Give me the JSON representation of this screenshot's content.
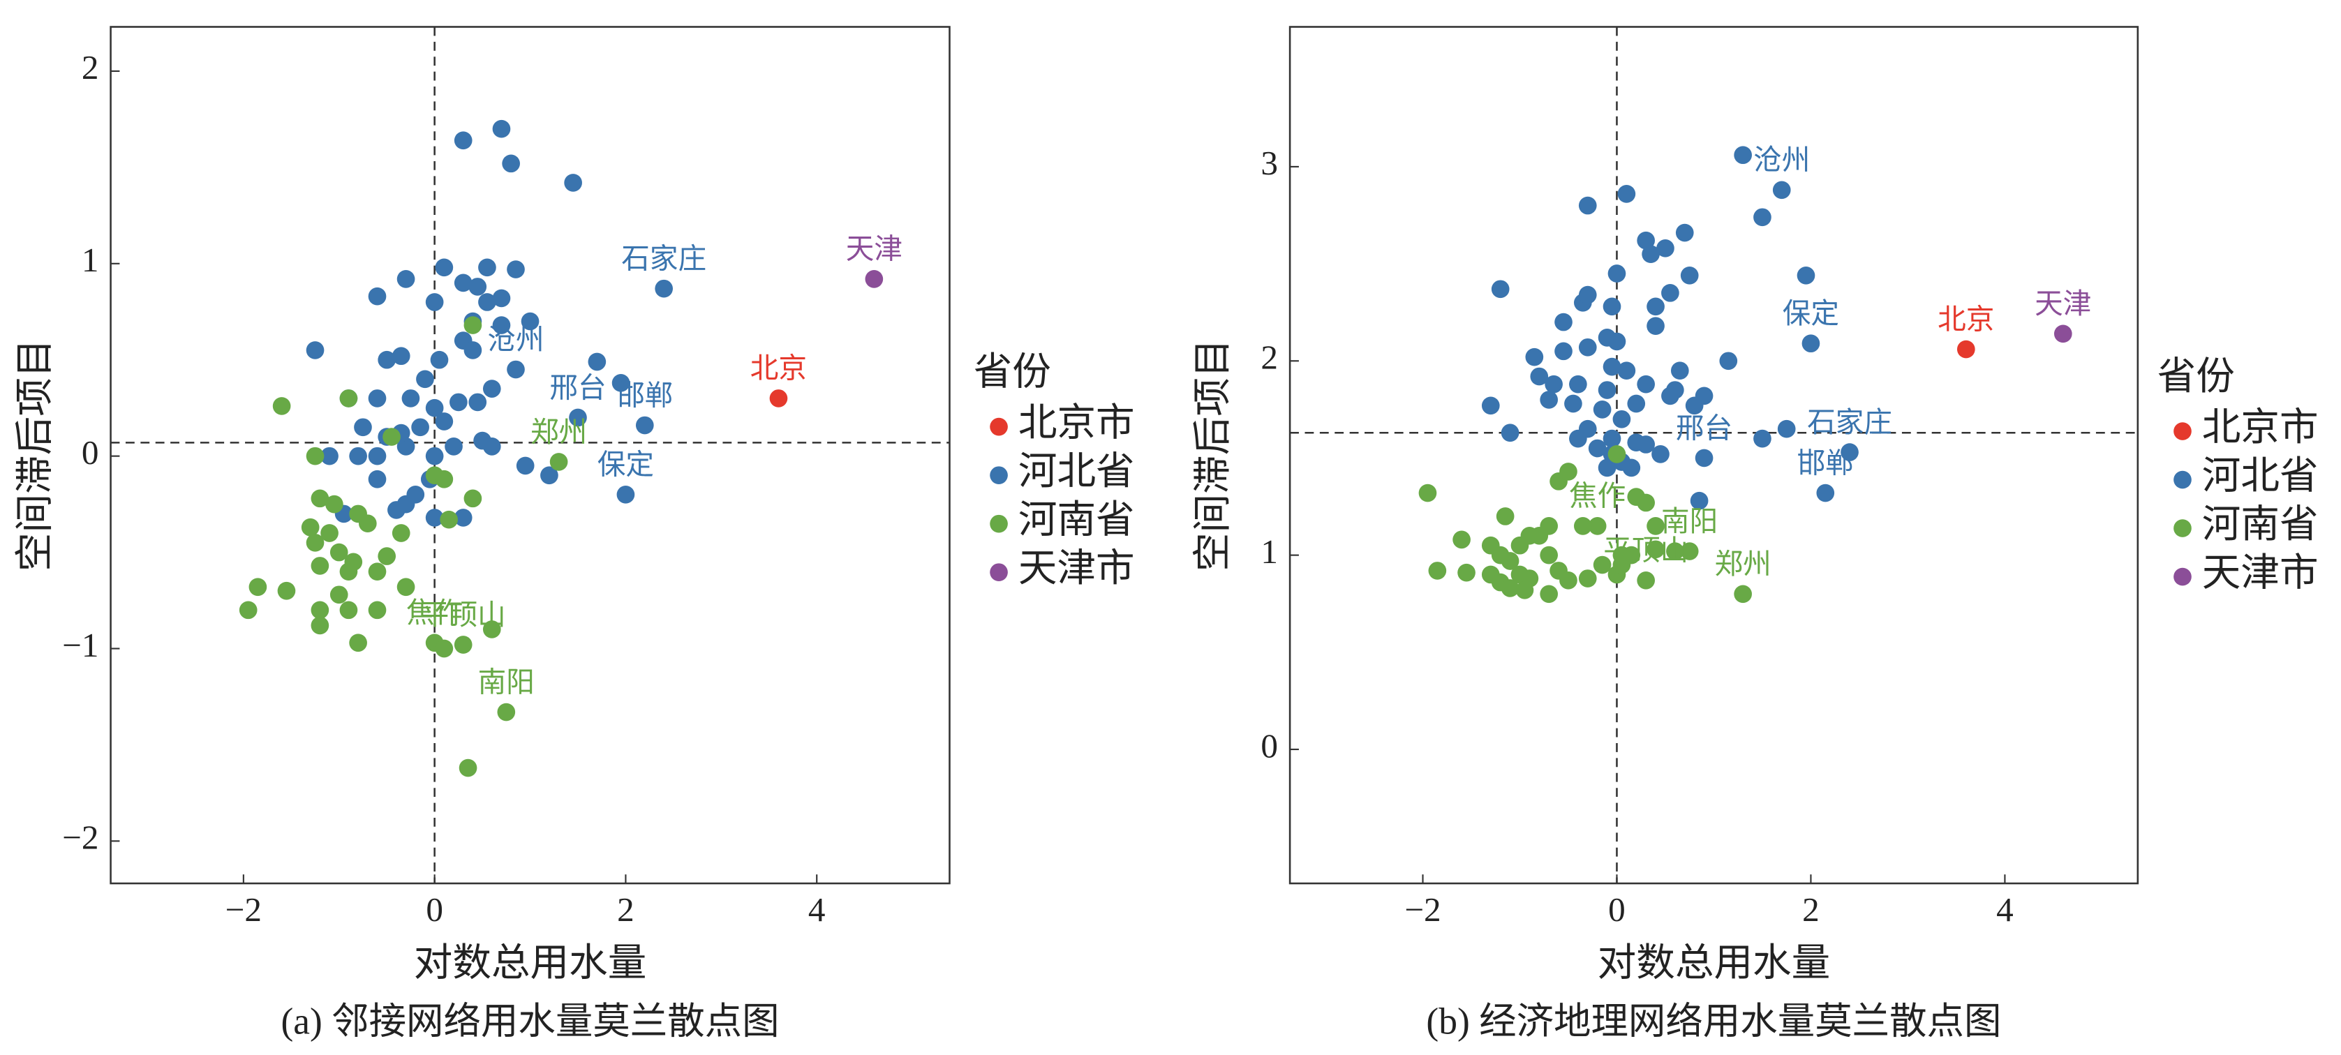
{
  "chart_data": [
    {
      "type": "scatter",
      "title": "(a) 邻接网络用水量莫兰散点图",
      "xlabel": "对数总用水量",
      "ylabel": "空间滞后项目",
      "legend_title": "省份",
      "xlim": [
        -3.39,
        5.39
      ],
      "ylim": [
        -2.22,
        2.23
      ],
      "xticks": [
        {
          "value": -2,
          "label": "−2"
        },
        0,
        2,
        4
      ],
      "yticks": [
        {
          "value": -2,
          "label": "−2"
        },
        {
          "value": -1,
          "label": "−1"
        },
        0,
        1,
        2
      ],
      "vline": 0,
      "hline": 0.07,
      "series": [
        {
          "name": "北京市",
          "color": "#e5392c",
          "x": [
            3.6
          ],
          "y": [
            0.3
          ],
          "labels": [
            "北京"
          ]
        },
        {
          "name": "河北省",
          "color": "#3a74ae",
          "x": [
            2.4,
            0.85,
            1.5,
            2.2,
            2.0,
            0.3,
            0.7,
            0.8,
            1.45,
            -0.3,
            0.1,
            0.3,
            0.55,
            0.85,
            0,
            0.45,
            0.55,
            0.7,
            -0.6,
            -1.25,
            -0.5,
            -0.35,
            0.05,
            0.3,
            0.4,
            0.7,
            1.0,
            1.7,
            1.95,
            -0.9,
            -0.6,
            -0.25,
            0,
            0.25,
            0.45,
            0.6,
            -0.75,
            -0.5,
            -0.3,
            -0.15,
            0.1,
            0.2,
            0.5,
            -1.1,
            -0.8,
            -0.6,
            -0.35,
            0,
            -0.05,
            0.6,
            0.95,
            1.2,
            -0.95,
            -0.4,
            -0.2,
            0,
            0.3,
            -0.3,
            -0.6,
            0.4,
            -0.1
          ],
          "y": [
            0.87,
            0.45,
            0.2,
            0.16,
            -0.2,
            1.64,
            1.7,
            1.52,
            1.42,
            0.92,
            0.98,
            0.9,
            0.98,
            0.97,
            0.8,
            0.88,
            0.8,
            0.82,
            0.83,
            0.55,
            0.5,
            0.52,
            0.5,
            0.6,
            0.55,
            0.68,
            0.7,
            0.49,
            0.38,
            0.3,
            0.3,
            0.3,
            0.25,
            0.28,
            0.28,
            0.35,
            0.15,
            0.1,
            0.05,
            0.15,
            0.18,
            0.05,
            0.08,
            0,
            0,
            0,
            0.12,
            0,
            -0.12,
            0.05,
            -0.05,
            -0.1,
            -0.3,
            -0.28,
            -0.2,
            -0.32,
            -0.32,
            -0.25,
            -0.12,
            0.7,
            0.4
          ],
          "labels": [
            "石家庄",
            "沧州",
            "邢台",
            "邯郸",
            "保定",
            null,
            null,
            null,
            null,
            null,
            null,
            null,
            null,
            null,
            null,
            null,
            null,
            null,
            null,
            null,
            null,
            null,
            null,
            null,
            null,
            null,
            null,
            null,
            null,
            null,
            null,
            null,
            null,
            null,
            null,
            null,
            null,
            null,
            null,
            null,
            null,
            null,
            null,
            null,
            null,
            null,
            null,
            null,
            null,
            null,
            null,
            null,
            null,
            null,
            null,
            null,
            null,
            null,
            null,
            null,
            null
          ]
        },
        {
          "name": "河南省",
          "color": "#68a946",
          "x": [
            1.3,
            0,
            0.3,
            0.75,
            -1.6,
            -1.25,
            -0.9,
            -0.45,
            0.4,
            -1.2,
            -1.05,
            -0.8,
            -1.3,
            -1.1,
            -0.7,
            -0.35,
            -1.25,
            -1.0,
            -0.85,
            -0.5,
            -1.2,
            -0.9,
            -0.6,
            -0.3,
            -1.85,
            -1.55,
            -1.0,
            -0.9,
            -1.2,
            -0.6,
            -1.2,
            -1.95,
            -0.8,
            0,
            0.1,
            0.4,
            0.15,
            0.1,
            0.6,
            0.35
          ],
          "y": [
            -0.03,
            -0.97,
            -0.98,
            -1.33,
            0.26,
            0,
            0.3,
            0.1,
            0.68,
            -0.22,
            -0.25,
            -0.3,
            -0.37,
            -0.4,
            -0.35,
            -0.4,
            -0.45,
            -0.5,
            -0.55,
            -0.52,
            -0.57,
            -0.6,
            -0.6,
            -0.68,
            -0.68,
            -0.7,
            -0.72,
            -0.8,
            -0.8,
            -0.8,
            -0.88,
            -0.8,
            -0.97,
            -0.1,
            -0.12,
            -0.22,
            -0.33,
            -1.0,
            -0.9,
            -1.62
          ],
          "labels": [
            "郑州",
            "焦作",
            "平顶山",
            "南阳",
            null,
            null,
            null,
            null,
            null,
            null,
            null,
            null,
            null,
            null,
            null,
            null,
            null,
            null,
            null,
            null,
            null,
            null,
            null,
            null,
            null,
            null,
            null,
            null,
            null,
            null,
            null,
            null,
            null,
            null,
            null,
            null,
            null,
            null,
            null,
            null
          ]
        },
        {
          "name": "天津市",
          "color": "#8b4e98",
          "x": [
            4.6
          ],
          "y": [
            0.92
          ],
          "labels": [
            "天津"
          ]
        }
      ]
    },
    {
      "type": "scatter",
      "title": "(b) 经济地理网络用水量莫兰散点图",
      "xlabel": "对数总用水量",
      "ylabel": "空间滞后项目",
      "legend_title": "省份",
      "xlim": [
        -3.37,
        5.37
      ],
      "ylim": [
        -0.69,
        3.72
      ],
      "xticks": [
        {
          "value": -2,
          "label": "−2"
        },
        0,
        2,
        4
      ],
      "yticks": [
        0,
        1,
        2,
        3
      ],
      "vline": 0,
      "hline": 1.63,
      "series": [
        {
          "name": "北京市",
          "color": "#e5392c",
          "x": [
            3.6
          ],
          "y": [
            2.06
          ],
          "labels": [
            "北京"
          ]
        },
        {
          "name": "河北省",
          "color": "#3a74ae",
          "x": [
            1.7,
            2.0,
            0.9,
            2.4,
            2.15,
            1.3,
            1.5,
            -0.3,
            0.1,
            0.7,
            0.5,
            0.35,
            0.3,
            1.95,
            -1.2,
            -0.35,
            -0.3,
            0,
            0.75,
            0.55,
            0.4,
            -0.05,
            0.4,
            -0.55,
            -0.1,
            0,
            -0.3,
            -0.55,
            -0.85,
            -0.05,
            0.1,
            0.65,
            1.15,
            -0.8,
            -0.65,
            -0.4,
            -0.1,
            0.3,
            0.6,
            0.9,
            -1.3,
            -0.7,
            -0.45,
            -0.15,
            0.2,
            0.55,
            0.8,
            -1.1,
            -0.3,
            0.05,
            -0.4,
            -0.05,
            0.2,
            0.3,
            -0.05,
            0.45,
            1.5,
            1.75,
            -0.1,
            0.15,
            0.85,
            0.05,
            -0.2
          ],
          "y": [
            2.88,
            2.09,
            1.5,
            1.53,
            1.32,
            3.06,
            2.74,
            2.8,
            2.86,
            2.66,
            2.58,
            2.55,
            2.62,
            2.44,
            2.37,
            2.3,
            2.34,
            2.45,
            2.44,
            2.35,
            2.28,
            2.28,
            2.18,
            2.2,
            2.12,
            2.1,
            2.07,
            2.05,
            2.02,
            1.97,
            1.95,
            1.95,
            2.0,
            1.92,
            1.88,
            1.88,
            1.85,
            1.88,
            1.85,
            1.82,
            1.77,
            1.8,
            1.78,
            1.75,
            1.78,
            1.82,
            1.77,
            1.63,
            1.65,
            1.7,
            1.6,
            1.6,
            1.58,
            1.57,
            1.52,
            1.52,
            1.6,
            1.65,
            1.45,
            1.45,
            1.28,
            1.48,
            1.55
          ],
          "labels": [
            "沧州",
            "保定",
            "邢台",
            "石家庄",
            "邯郸",
            null,
            null,
            null,
            null,
            null,
            null,
            null,
            null,
            null,
            null,
            null,
            null,
            null,
            null,
            null,
            null,
            null,
            null,
            null,
            null,
            null,
            null,
            null,
            null,
            null,
            null,
            null,
            null,
            null,
            null,
            null,
            null,
            null,
            null,
            null,
            null,
            null,
            null,
            null,
            null,
            null,
            null,
            null,
            null,
            null,
            null,
            null,
            null,
            null,
            null,
            null,
            null,
            null,
            null,
            null,
            null,
            null,
            null
          ]
        },
        {
          "name": "河南省",
          "color": "#68a946",
          "x": [
            -0.2,
            0.3,
            0.75,
            1.3,
            -1.95,
            -1.6,
            -1.3,
            -1.85,
            -1.55,
            -1.3,
            -1.2,
            -1.15,
            -1.0,
            -0.9,
            -0.8,
            -0.7,
            -0.5,
            -0.6,
            -0.35,
            -1.1,
            -1.0,
            -1.2,
            -0.9,
            -0.7,
            -0.6,
            -0.5,
            -0.3,
            -1.1,
            -0.95,
            -0.7,
            -0.15,
            0,
            0.05,
            0.15,
            0.2,
            0.3,
            0.4,
            0.4,
            0.6,
            0,
            0.05
          ],
          "y": [
            1.15,
            0.87,
            1.02,
            0.8,
            1.32,
            1.08,
            1.05,
            0.92,
            0.91,
            0.9,
            0.86,
            1.2,
            1.05,
            1.1,
            1.1,
            1.15,
            1.43,
            1.38,
            1.15,
            0.97,
            0.9,
            1.0,
            0.88,
            1.0,
            0.92,
            0.87,
            0.88,
            0.83,
            0.82,
            0.8,
            0.95,
            0.9,
            0.95,
            1.0,
            1.3,
            1.27,
            1.15,
            1.03,
            1.02,
            1.52,
            1.0
          ],
          "labels": [
            "焦作",
            "平顶山",
            "南阳",
            "郑州",
            null,
            null,
            null,
            null,
            null,
            null,
            null,
            null,
            null,
            null,
            null,
            null,
            null,
            null,
            null,
            null,
            null,
            null,
            null,
            null,
            null,
            null,
            null,
            null,
            null,
            null,
            null,
            null,
            null,
            null,
            null,
            null,
            null,
            null,
            null,
            null,
            null
          ]
        },
        {
          "name": "天津市",
          "color": "#8b4e98",
          "x": [
            4.6
          ],
          "y": [
            2.14
          ],
          "labels": [
            "天津"
          ]
        }
      ]
    }
  ]
}
